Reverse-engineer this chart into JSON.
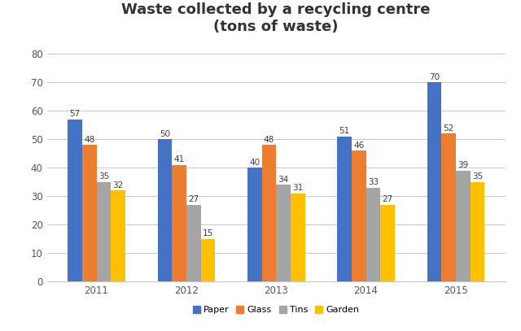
{
  "title": "Waste collected by a recycling centre\n(tons of waste)",
  "years": [
    "2011",
    "2012",
    "2013",
    "2014",
    "2015"
  ],
  "categories": [
    "Paper",
    "Glass",
    "Tins",
    "Garden"
  ],
  "values": {
    "Paper": [
      57,
      50,
      40,
      51,
      70
    ],
    "Glass": [
      48,
      41,
      48,
      46,
      52
    ],
    "Tins": [
      35,
      27,
      34,
      33,
      39
    ],
    "Garden": [
      32,
      15,
      31,
      27,
      35
    ]
  },
  "colors": {
    "Paper": "#4472C4",
    "Glass": "#ED7D31",
    "Tins": "#A5A5A5",
    "Garden": "#FFC000"
  },
  "ylim": [
    0,
    85
  ],
  "yticks": [
    0,
    10,
    20,
    30,
    40,
    50,
    60,
    70,
    80
  ],
  "bar_width": 0.16,
  "background_color": "#FFFFFF",
  "plot_bg_color": "#FFFFFF",
  "grid_color": "#C8C8C8",
  "title_fontsize": 13,
  "label_fontsize": 7.5,
  "tick_fontsize": 8.5,
  "legend_fontsize": 8
}
